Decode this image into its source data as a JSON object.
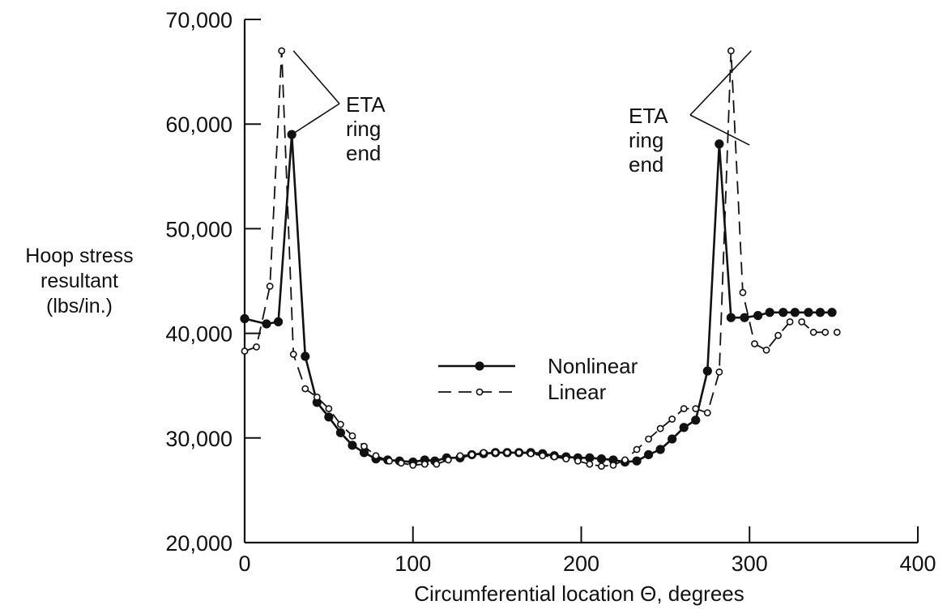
{
  "chart_data": {
    "type": "line",
    "title": "",
    "xlabel": "Circumferential location Θ, degrees",
    "ylabel": [
      "Hoop stress",
      "resultant",
      "(lbs/in.)"
    ],
    "xlim": [
      0,
      400
    ],
    "ylim": [
      20000,
      70000
    ],
    "xticks": [
      "0",
      "100",
      "200",
      "300",
      "400"
    ],
    "yticks": [
      "20,000",
      "30,000",
      "40,000",
      "50,000",
      "60,000",
      "70,000"
    ],
    "xtick_values": [
      0,
      100,
      200,
      300,
      400
    ],
    "ytick_values": [
      20000,
      30000,
      40000,
      50000,
      60000,
      70000
    ],
    "grid": false,
    "legend_position": "center",
    "series": [
      {
        "name": "Nonlinear",
        "style": "solid",
        "marker": "filled-circle",
        "x": [
          0,
          13,
          20,
          28,
          36,
          43,
          50,
          57,
          64,
          71,
          78,
          85,
          92,
          100,
          107,
          113,
          120,
          128,
          135,
          142,
          149,
          156,
          163,
          170,
          177,
          184,
          191,
          198,
          205,
          212,
          219,
          226,
          233,
          240,
          247,
          254,
          261,
          268,
          275,
          282,
          289,
          297,
          305,
          312,
          320,
          327,
          335,
          342,
          349
        ],
        "y": [
          41400,
          40900,
          41100,
          59000,
          37800,
          33400,
          32000,
          30500,
          29300,
          28600,
          28000,
          27900,
          27800,
          27700,
          27900,
          27800,
          28100,
          28100,
          28400,
          28500,
          28600,
          28600,
          28600,
          28600,
          28500,
          28300,
          28200,
          28100,
          28100,
          28000,
          27900,
          27700,
          27800,
          28400,
          28900,
          29900,
          31000,
          31700,
          36400,
          58100,
          41500,
          41500,
          41700,
          42000,
          42000,
          42000,
          42000,
          42000,
          42000
        ]
      },
      {
        "name": "Linear",
        "style": "dashed",
        "marker": "open-circle",
        "x": [
          0,
          7,
          15,
          22,
          29,
          36,
          43,
          50,
          57,
          64,
          71,
          78,
          86,
          93,
          100,
          107,
          114,
          121,
          128,
          135,
          142,
          149,
          156,
          163,
          170,
          177,
          184,
          191,
          198,
          205,
          212,
          219,
          226,
          233,
          240,
          247,
          254,
          261,
          268,
          275,
          282,
          289,
          296,
          303,
          310,
          317,
          324,
          331,
          338,
          345,
          352
        ],
        "y": [
          38300,
          38700,
          44500,
          67000,
          38000,
          34700,
          33900,
          32800,
          31300,
          30200,
          29200,
          28300,
          27800,
          27600,
          27400,
          27500,
          27500,
          27900,
          28300,
          28400,
          28600,
          28600,
          28600,
          28600,
          28500,
          28300,
          28200,
          28000,
          27800,
          27500,
          27300,
          27400,
          27900,
          28900,
          29900,
          30900,
          31800,
          32800,
          32800,
          32400,
          36300,
          67000,
          43900,
          39000,
          38400,
          39800,
          41100,
          41100,
          40100,
          40100,
          40100
        ]
      }
    ],
    "legend": [
      {
        "label": "Nonlinear",
        "series": 0
      },
      {
        "label": "Linear",
        "series": 1
      }
    ],
    "annotations": [
      {
        "text": [
          "ETA",
          "ring",
          "end"
        ],
        "points": [
          [
            29,
            67000
          ],
          [
            28,
            59000
          ]
        ]
      },
      {
        "text": [
          "ETA",
          "ring",
          "end"
        ],
        "points": [
          [
            301,
            67000
          ],
          [
            300,
            58000
          ]
        ]
      }
    ]
  }
}
